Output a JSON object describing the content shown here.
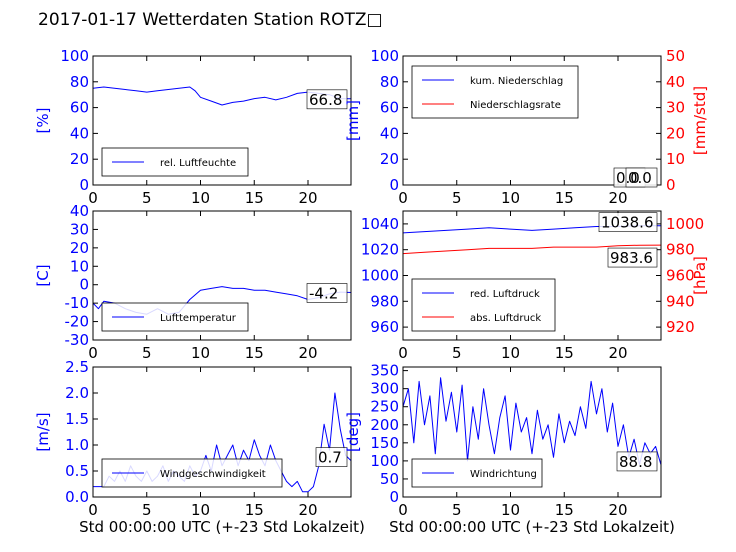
{
  "figure_title": "2017-01-17 Wetterdaten Station ROTZ□",
  "colors": {
    "left_axis": "#0000ff",
    "right_axis": "#ff0000",
    "series_blue": "#0000ff",
    "series_red": "#ff0000"
  },
  "chart_data": [
    {
      "id": "humidity",
      "type": "line",
      "ylabel": "[%]",
      "xlabel": "",
      "xlim": [
        0,
        24
      ],
      "ylim": [
        0,
        100
      ],
      "xticks": [
        0,
        5,
        10,
        15,
        20
      ],
      "yticks": [
        0,
        20,
        40,
        60,
        80,
        100
      ],
      "legend": {
        "placement": "lower-left",
        "entries": [
          "rel. Luftfeuchte"
        ]
      },
      "value_labels": [
        "66.8"
      ],
      "series": [
        {
          "name": "rel. Luftfeuchte",
          "axis": "left",
          "color": "#0000ff",
          "x": [
            0,
            1,
            2,
            3,
            4,
            5,
            6,
            7,
            8,
            9,
            9.5,
            10,
            11,
            12,
            13,
            14,
            15,
            16,
            17,
            18,
            19,
            20,
            21,
            22,
            23,
            24
          ],
          "y": [
            75,
            76,
            75,
            74,
            73,
            72,
            73,
            74,
            75,
            76,
            73,
            68,
            65,
            62,
            64,
            65,
            67,
            68,
            66,
            68,
            71,
            72,
            71,
            70,
            67,
            66.8
          ]
        }
      ]
    },
    {
      "id": "precipitation",
      "type": "line",
      "ylabel": "[mm]",
      "ylabel_right": "[mm/std]",
      "xlabel": "",
      "xlim": [
        0,
        24
      ],
      "ylim": [
        0,
        100
      ],
      "ylim_right": [
        0,
        50
      ],
      "xticks": [
        0,
        5,
        10,
        15,
        20
      ],
      "yticks": [
        0,
        20,
        40,
        60,
        80,
        100
      ],
      "yticks_right": [
        0,
        10,
        20,
        30,
        40,
        50
      ],
      "legend": {
        "placement": "upper-left",
        "entries": [
          "kum. Niederschlag",
          "Niederschlagsrate"
        ]
      },
      "value_labels": [
        "0.0",
        "0.0"
      ],
      "series": [
        {
          "name": "kum. Niederschlag",
          "axis": "left",
          "color": "#0000ff",
          "x": [
            0,
            24
          ],
          "y": [
            0,
            0
          ]
        },
        {
          "name": "Niederschlagsrate",
          "axis": "right",
          "color": "#ff0000",
          "x": [
            0,
            24
          ],
          "y": [
            0,
            0
          ]
        }
      ]
    },
    {
      "id": "temperature",
      "type": "line",
      "ylabel": "[C]",
      "xlabel": "",
      "xlim": [
        0,
        24
      ],
      "ylim": [
        -30,
        40
      ],
      "xticks": [
        0,
        5,
        10,
        15,
        20
      ],
      "yticks": [
        -30,
        -20,
        -10,
        0,
        10,
        20,
        30,
        40
      ],
      "legend": {
        "placement": "lower-left",
        "entries": [
          "Lufttemperatur"
        ]
      },
      "value_labels": [
        "-4.2"
      ],
      "series": [
        {
          "name": "Lufttemperatur",
          "axis": "left",
          "color": "#0000ff",
          "x": [
            0,
            0.5,
            1,
            2,
            3,
            4,
            5,
            6,
            7,
            8,
            9,
            10,
            11,
            12,
            13,
            14,
            15,
            16,
            17,
            18,
            19,
            20,
            21,
            22,
            23,
            24
          ],
          "y": [
            -10,
            -13,
            -9,
            -10,
            -13,
            -15,
            -16,
            -13,
            -16,
            -15,
            -8,
            -3,
            -2,
            -1,
            -2,
            -2,
            -3,
            -3,
            -4,
            -5,
            -6,
            -8,
            -7,
            -5,
            -4,
            -4.2
          ]
        }
      ]
    },
    {
      "id": "pressure",
      "type": "line",
      "ylabel": "",
      "ylabel_right": "[hPa]",
      "xlabel": "",
      "xlim": [
        0,
        24
      ],
      "ylim": [
        950,
        1050
      ],
      "ylim_right": [
        910,
        1010
      ],
      "xticks": [
        0,
        5,
        10,
        15,
        20
      ],
      "yticks": [
        960,
        980,
        1000,
        1020,
        1040
      ],
      "yticks_right": [
        920,
        940,
        960,
        980,
        1000
      ],
      "legend": {
        "placement": "lower-left",
        "entries": [
          "red. Luftdruck",
          "abs. Luftdruck"
        ]
      },
      "value_labels": [
        "1038.6",
        "983.6"
      ],
      "series": [
        {
          "name": "red. Luftdruck",
          "axis": "left",
          "color": "#0000ff",
          "x": [
            0,
            2,
            4,
            6,
            8,
            10,
            12,
            14,
            16,
            18,
            20,
            22,
            24
          ],
          "y": [
            1033,
            1034,
            1035,
            1036,
            1037,
            1036,
            1035,
            1036,
            1037,
            1038,
            1038,
            1038.5,
            1038.6
          ]
        },
        {
          "name": "abs. Luftdruck",
          "axis": "right",
          "color": "#ff0000",
          "x": [
            0,
            2,
            4,
            6,
            8,
            10,
            12,
            14,
            16,
            18,
            20,
            22,
            24
          ],
          "y": [
            977,
            978,
            979,
            980,
            981,
            981,
            981,
            982,
            982,
            982,
            983,
            983.5,
            983.6
          ]
        }
      ]
    },
    {
      "id": "windspeed",
      "type": "line",
      "ylabel": "[m/s]",
      "xlabel": "Std 00:00:00 UTC (+-23 Std Lokalzeit)",
      "xlim": [
        0,
        24
      ],
      "ylim": [
        0,
        2.5
      ],
      "xticks": [
        0,
        5,
        10,
        15,
        20
      ],
      "yticks": [
        0.0,
        0.5,
        1.0,
        1.5,
        2.0,
        2.5
      ],
      "legend": {
        "placement": "lower-left",
        "entries": [
          "Windgeschwindigkeit"
        ]
      },
      "value_labels": [
        "0.7"
      ],
      "series": [
        {
          "name": "Windgeschwindigkeit",
          "axis": "left",
          "color": "#0000ff",
          "x": [
            0,
            1,
            1.5,
            2,
            2.5,
            3,
            3.5,
            4,
            4.5,
            5,
            5.5,
            6,
            6.5,
            7,
            7.5,
            8,
            8.5,
            9,
            9.5,
            10,
            10.5,
            11,
            11.5,
            12,
            12.5,
            13,
            13.5,
            14,
            14.5,
            15,
            15.5,
            16,
            16.5,
            17,
            17.5,
            18,
            18.5,
            19,
            19.5,
            20,
            20.5,
            21,
            21.5,
            22,
            22.5,
            23,
            23.5,
            24
          ],
          "y": [
            0.2,
            0.2,
            0.4,
            0.3,
            0.5,
            0.3,
            0.6,
            0.4,
            0.3,
            0.5,
            0.3,
            0.4,
            0.6,
            0.3,
            0.5,
            0.4,
            0.3,
            0.6,
            0.4,
            0.5,
            0.8,
            0.5,
            1.0,
            0.6,
            0.8,
            1.0,
            0.6,
            0.9,
            0.7,
            1.1,
            0.8,
            0.6,
            1.0,
            0.7,
            0.5,
            0.3,
            0.2,
            0.3,
            0.1,
            0.1,
            0.2,
            0.6,
            1.4,
            0.9,
            2.0,
            1.3,
            0.8,
            0.7
          ]
        }
      ]
    },
    {
      "id": "winddirection",
      "type": "line",
      "ylabel": "[deg]",
      "xlabel": "Std 00:00:00 UTC (+-23 Std Lokalzeit)",
      "xlim": [
        0,
        24
      ],
      "ylim": [
        0,
        360
      ],
      "xticks": [
        0,
        5,
        10,
        15,
        20
      ],
      "yticks": [
        0,
        50,
        100,
        150,
        200,
        250,
        300,
        350
      ],
      "legend": {
        "placement": "lower-left",
        "entries": [
          "Windrichtung"
        ]
      },
      "value_labels": [
        "88.8"
      ],
      "series": [
        {
          "name": "Windrichtung",
          "axis": "left",
          "color": "#0000ff",
          "x": [
            0,
            0.5,
            1,
            1.5,
            2,
            2.5,
            3,
            3.5,
            4,
            4.5,
            5,
            5.5,
            6,
            6.5,
            7,
            7.5,
            8,
            8.5,
            9,
            9.5,
            10,
            10.5,
            11,
            11.5,
            12,
            12.5,
            13,
            13.5,
            14,
            14.5,
            15,
            15.5,
            16,
            16.5,
            17,
            17.5,
            18,
            18.5,
            19,
            19.5,
            20,
            20.5,
            21,
            21.5,
            22,
            22.5,
            23,
            23.5,
            24
          ],
          "y": [
            250,
            300,
            150,
            320,
            200,
            280,
            120,
            330,
            210,
            290,
            180,
            310,
            100,
            250,
            160,
            300,
            200,
            120,
            220,
            280,
            130,
            260,
            180,
            220,
            120,
            240,
            160,
            200,
            110,
            230,
            150,
            210,
            170,
            250,
            190,
            320,
            230,
            300,
            180,
            260,
            140,
            200,
            110,
            160,
            90,
            150,
            120,
            140,
            88.8
          ]
        }
      ]
    }
  ]
}
